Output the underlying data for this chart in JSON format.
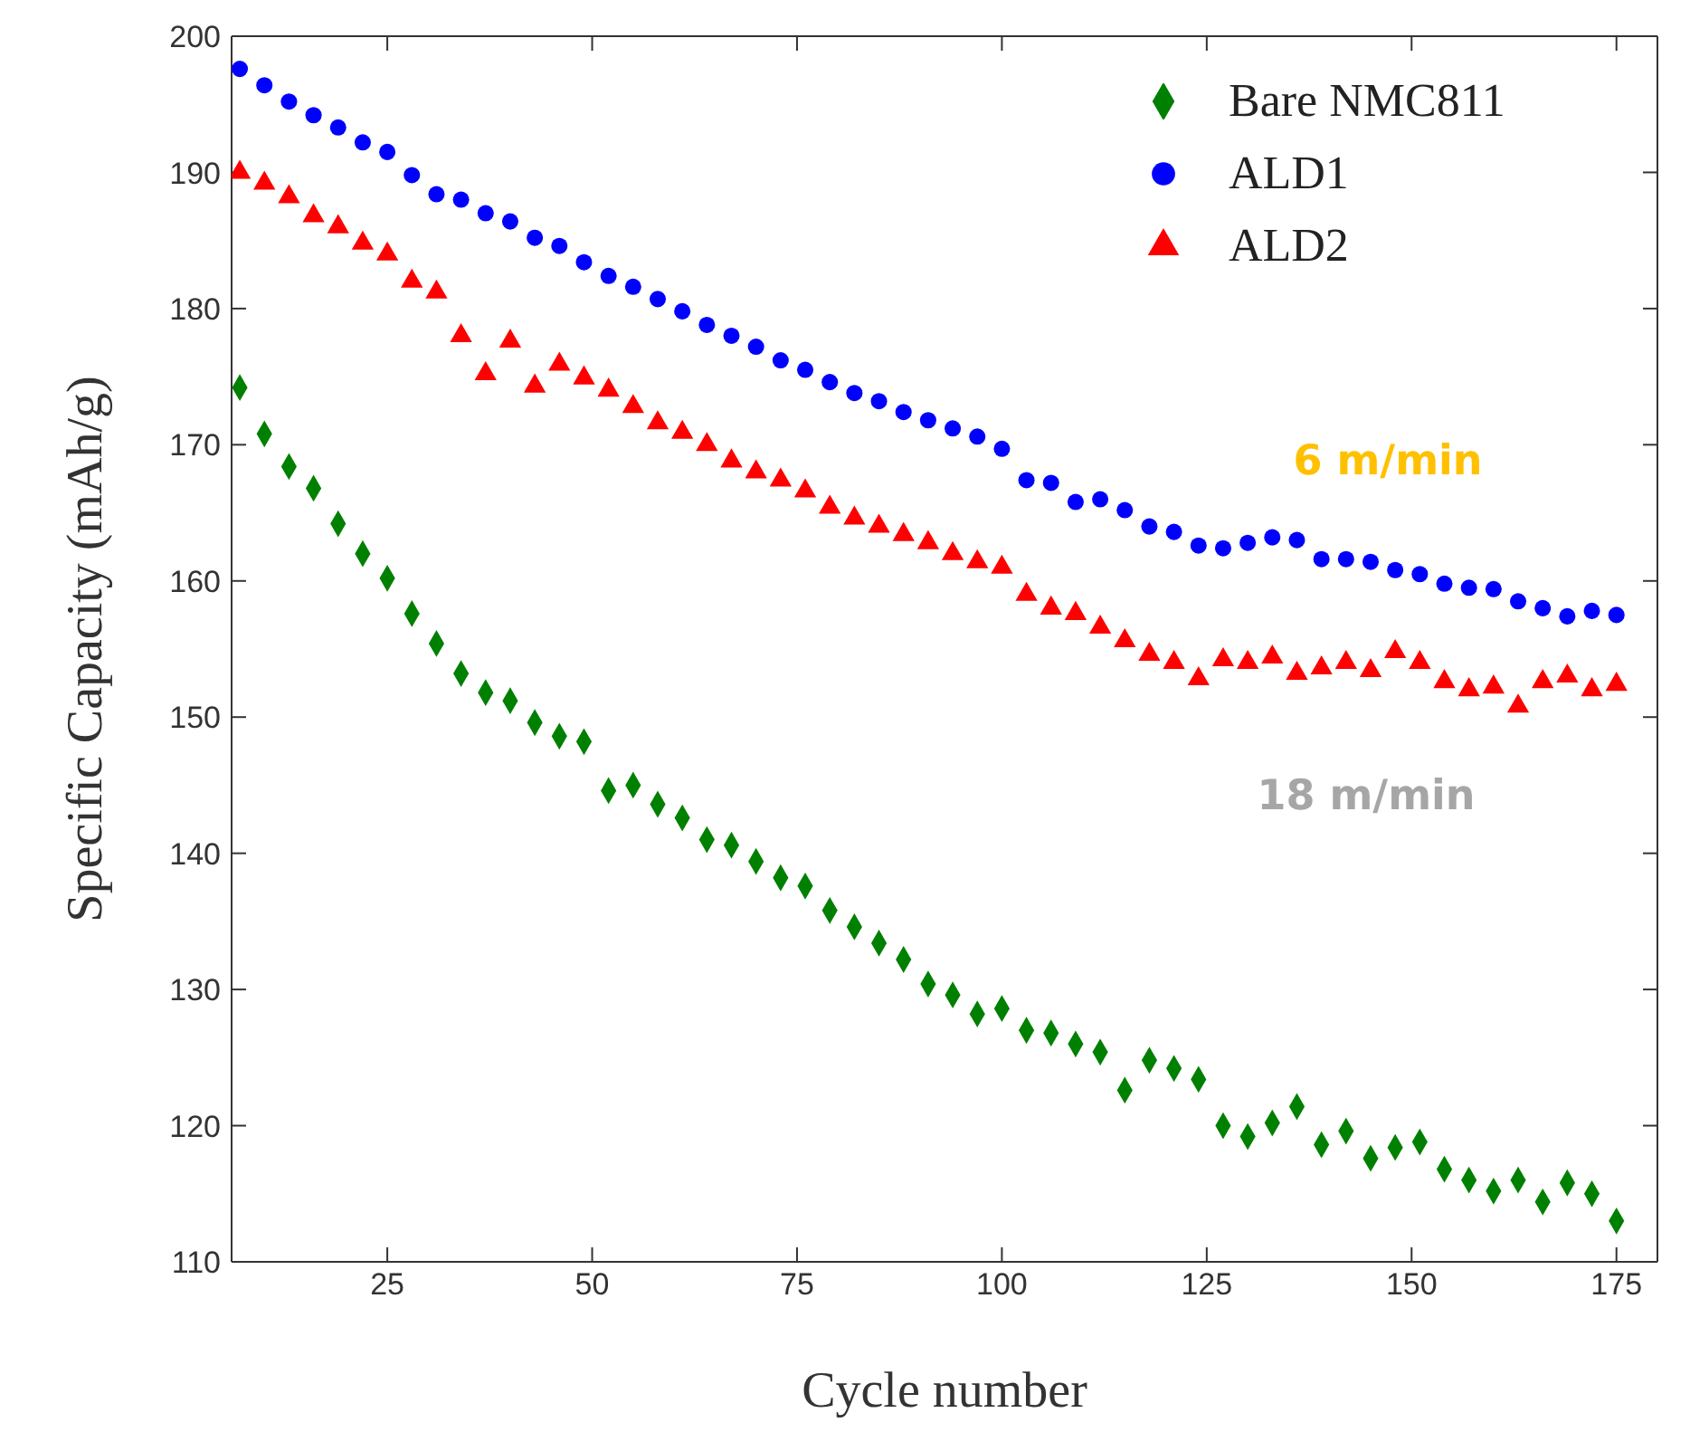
{
  "chart_data": {
    "type": "scatter",
    "xlabel": "Cycle number",
    "ylabel": "Specific Capacity (mAh/g)",
    "x": [
      7,
      10,
      13,
      16,
      19,
      22,
      25,
      28,
      31,
      34,
      37,
      40,
      43,
      46,
      49,
      52,
      55,
      58,
      61,
      64,
      67,
      70,
      73,
      76,
      79,
      82,
      85,
      88,
      91,
      94,
      97,
      100,
      103,
      106,
      109,
      112,
      115,
      118,
      121,
      124,
      127,
      130,
      133,
      136,
      139,
      142,
      145,
      148,
      151,
      154,
      157,
      160,
      163,
      166,
      169,
      172,
      175
    ],
    "series": [
      {
        "name": "Bare NMC811",
        "color": "#008000",
        "marker": "diamond",
        "values": [
          174.2,
          170.8,
          168.4,
          166.8,
          164.2,
          162.0,
          160.2,
          157.6,
          155.4,
          153.2,
          151.8,
          151.2,
          149.6,
          148.6,
          148.2,
          144.6,
          145.0,
          143.6,
          142.6,
          141.0,
          140.6,
          139.4,
          138.2,
          137.6,
          135.8,
          134.6,
          133.4,
          132.2,
          130.4,
          129.6,
          128.2,
          128.6,
          127.0,
          126.8,
          126.0,
          125.4,
          122.6,
          124.8,
          124.2,
          123.4,
          120.0,
          119.2,
          120.2,
          121.4,
          118.6,
          119.6,
          117.6,
          118.4,
          118.8,
          116.8,
          116.0,
          115.2,
          116.0,
          114.4,
          115.8,
          115.0,
          113.0
        ]
      },
      {
        "name": "ALD1",
        "color": "#0000ff",
        "marker": "circle",
        "values": [
          197.6,
          196.4,
          195.2,
          194.2,
          193.3,
          192.2,
          191.5,
          189.8,
          188.4,
          188.0,
          187.0,
          186.4,
          185.2,
          184.6,
          183.4,
          182.4,
          181.6,
          180.7,
          179.8,
          178.8,
          178.0,
          177.2,
          176.2,
          175.5,
          174.6,
          173.8,
          173.2,
          172.4,
          171.8,
          171.2,
          170.6,
          169.7,
          167.4,
          167.2,
          165.8,
          166.0,
          165.2,
          164.0,
          163.6,
          162.6,
          162.4,
          162.8,
          163.2,
          163.0,
          161.6,
          161.6,
          161.4,
          160.8,
          160.5,
          159.8,
          159.5,
          159.4,
          158.5,
          158.0,
          157.4,
          157.8,
          157.5
        ]
      },
      {
        "name": "ALD2",
        "color": "#ff0000",
        "marker": "triangle",
        "values": [
          190.0,
          189.2,
          188.2,
          186.8,
          186.0,
          184.8,
          184.0,
          182.0,
          181.2,
          178.0,
          175.2,
          177.6,
          174.3,
          175.9,
          174.9,
          174.0,
          172.8,
          171.6,
          170.9,
          170.0,
          168.8,
          168.0,
          167.4,
          166.6,
          165.4,
          164.6,
          164.0,
          163.4,
          162.8,
          162.0,
          161.4,
          161.0,
          159.0,
          158.0,
          157.6,
          156.6,
          155.6,
          154.6,
          154.0,
          152.8,
          154.2,
          154.0,
          154.4,
          153.2,
          153.6,
          154.0,
          153.4,
          154.8,
          154.0,
          152.6,
          152.0,
          152.2,
          150.8,
          152.6,
          153.0,
          152.0,
          152.4
        ]
      }
    ],
    "xlim": [
      6,
      180
    ],
    "xticks": [
      25,
      50,
      75,
      100,
      125,
      150,
      175
    ],
    "ylim": [
      110,
      200
    ],
    "yticks": [
      110,
      120,
      130,
      140,
      150,
      160,
      170,
      180,
      190,
      200
    ],
    "annotations": [
      "6 m/min",
      "18 m/min"
    ],
    "legend": "top right"
  }
}
